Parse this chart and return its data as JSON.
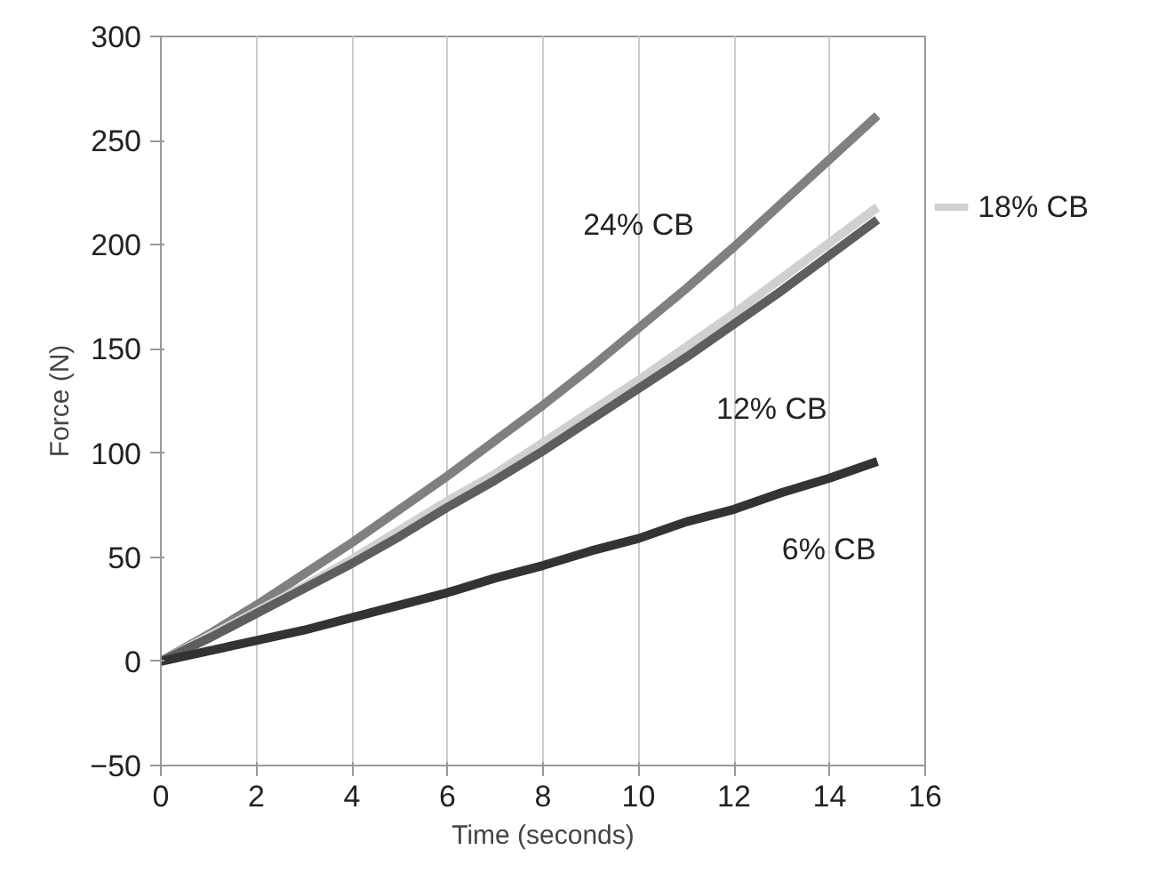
{
  "chart_data": {
    "type": "line",
    "xlabel": "Time (seconds)",
    "ylabel": "Force (N)",
    "x": [
      0,
      1,
      2,
      3,
      4,
      5,
      6,
      7,
      8,
      9,
      10,
      11,
      12,
      13,
      14,
      15
    ],
    "xlim": [
      0,
      16
    ],
    "xticks": [
      0,
      2,
      4,
      6,
      8,
      10,
      12,
      14,
      16
    ],
    "ylim": [
      -50,
      300
    ],
    "yticks": [
      -50,
      0,
      50,
      100,
      150,
      200,
      250,
      300
    ],
    "grid": "x",
    "marker": "none",
    "line_style": "solid",
    "series": [
      {
        "name": "24% CB",
        "color": "#808080",
        "values": [
          0,
          13,
          27,
          42,
          57,
          73,
          89,
          106,
          123,
          141,
          160,
          179,
          199,
          220,
          241,
          262
        ]
      },
      {
        "name": "18% CB",
        "color": "#d0d0d0",
        "values": [
          0,
          12,
          24,
          36,
          49,
          63,
          77,
          90,
          105,
          120,
          135,
          151,
          167,
          184,
          201,
          218
        ]
      },
      {
        "name": "12% CB",
        "color": "#5e5e5e",
        "values": [
          0,
          11,
          23,
          35,
          47,
          60,
          74,
          87,
          101,
          116,
          131,
          146,
          162,
          178,
          195,
          212
        ]
      },
      {
        "name": "6% CB",
        "color": "#333333",
        "values": [
          0,
          5,
          10,
          15,
          21,
          27,
          33,
          40,
          46,
          53,
          59,
          67,
          73,
          81,
          88,
          96
        ]
      }
    ]
  }
}
